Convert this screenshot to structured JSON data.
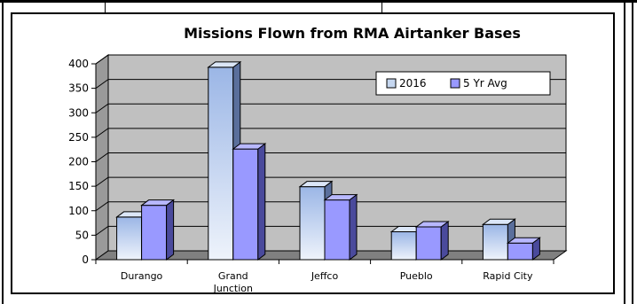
{
  "chart_data": {
    "type": "bar",
    "title": "Missions Flown from RMA Airtanker Bases",
    "categories": [
      [
        "Durango"
      ],
      [
        "Grand",
        "Junction"
      ],
      [
        "Jeffco"
      ],
      [
        "Pueblo"
      ],
      [
        "Rapid City"
      ]
    ],
    "series": [
      {
        "name": "2016",
        "values": [
          87,
          393,
          149,
          57,
          72
        ],
        "color": "#c6d7f0"
      },
      {
        "name": "5 Yr Avg",
        "values": [
          111,
          226,
          122,
          67,
          34
        ],
        "color": "#9999ff"
      }
    ],
    "ylim": [
      0,
      400
    ],
    "yticks": [
      0,
      50,
      100,
      150,
      200,
      250,
      300,
      350,
      400
    ],
    "grid": true,
    "legend": "top-right",
    "plot_bg": "#c0c0c0"
  }
}
